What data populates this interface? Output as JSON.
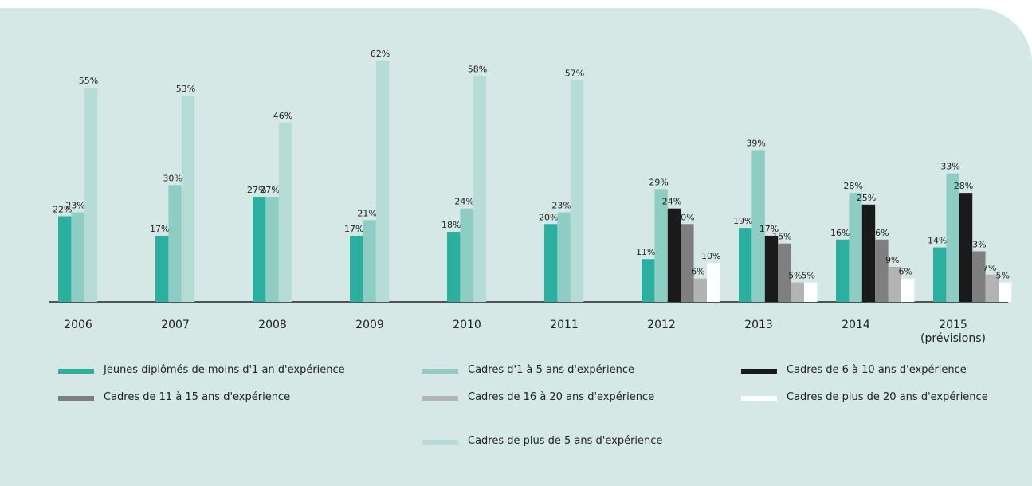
{
  "chart_data": {
    "type": "bar",
    "categories": [
      "2006",
      "2007",
      "2008",
      "2009",
      "2010",
      "2011",
      "2012",
      "2013",
      "2014",
      "2015 (prévisions)"
    ],
    "ylim": [
      0,
      62
    ],
    "series": [
      {
        "name": "Jeunes diplômés de moins d'1 an d'expérience",
        "color": "#2bb0a0",
        "values": [
          22,
          17,
          27,
          17,
          18,
          20,
          11,
          19,
          16,
          14
        ],
        "value_labels": [
          "22%",
          "17%",
          "27%",
          "17%",
          "18%",
          "20%",
          "11%",
          "19%",
          "16%",
          "14%"
        ]
      },
      {
        "name": "Cadres d'1 à 5 ans d'expérience",
        "color": "#8ecdc4",
        "values": [
          23,
          30,
          27,
          21,
          24,
          23,
          29,
          39,
          28,
          33
        ],
        "value_labels": [
          "23%",
          "30%",
          "27%",
          "21%",
          "24%",
          "23%",
          "29%",
          "39%",
          "28%",
          "33%"
        ]
      },
      {
        "name": "Cadres de 6 à 10 ans d'expérience",
        "color": "#1a1a1a",
        "values": [
          null,
          null,
          null,
          null,
          null,
          null,
          24,
          17,
          25,
          28
        ],
        "value_labels": [
          null,
          null,
          null,
          null,
          null,
          null,
          "24%",
          "17%",
          "25%",
          "28%"
        ]
      },
      {
        "name": "Cadres de 11 à 15 ans d'expérience",
        "color": "#7f7f7f",
        "values": [
          null,
          null,
          null,
          null,
          null,
          null,
          20,
          15,
          16,
          13
        ],
        "value_labels": [
          null,
          null,
          null,
          null,
          null,
          null,
          "20%",
          "15%",
          "16%",
          "13%"
        ]
      },
      {
        "name": "Cadres de 16 à 20 ans d'expérience",
        "color": "#b3b3b3",
        "values": [
          null,
          null,
          null,
          null,
          null,
          null,
          6,
          5,
          9,
          7
        ],
        "value_labels": [
          null,
          null,
          null,
          null,
          null,
          null,
          "6%",
          "5%",
          "9%",
          "7%"
        ]
      },
      {
        "name": "Cadres de plus de 20 ans d'expérience",
        "color": "#ffffff",
        "values": [
          null,
          null,
          null,
          null,
          null,
          null,
          10,
          5,
          6,
          5
        ],
        "value_labels": [
          null,
          null,
          null,
          null,
          null,
          null,
          "10%",
          "5%",
          "6%",
          "5%"
        ]
      },
      {
        "name": "Cadres de plus de 5 ans d'expérience",
        "color": "#b5ddd6",
        "values": [
          55,
          53,
          46,
          62,
          58,
          57,
          null,
          null,
          null,
          null
        ],
        "value_labels": [
          "55%",
          "53%",
          "46%",
          "62%",
          "58%",
          "57%",
          null,
          null,
          null,
          null
        ]
      }
    ]
  }
}
